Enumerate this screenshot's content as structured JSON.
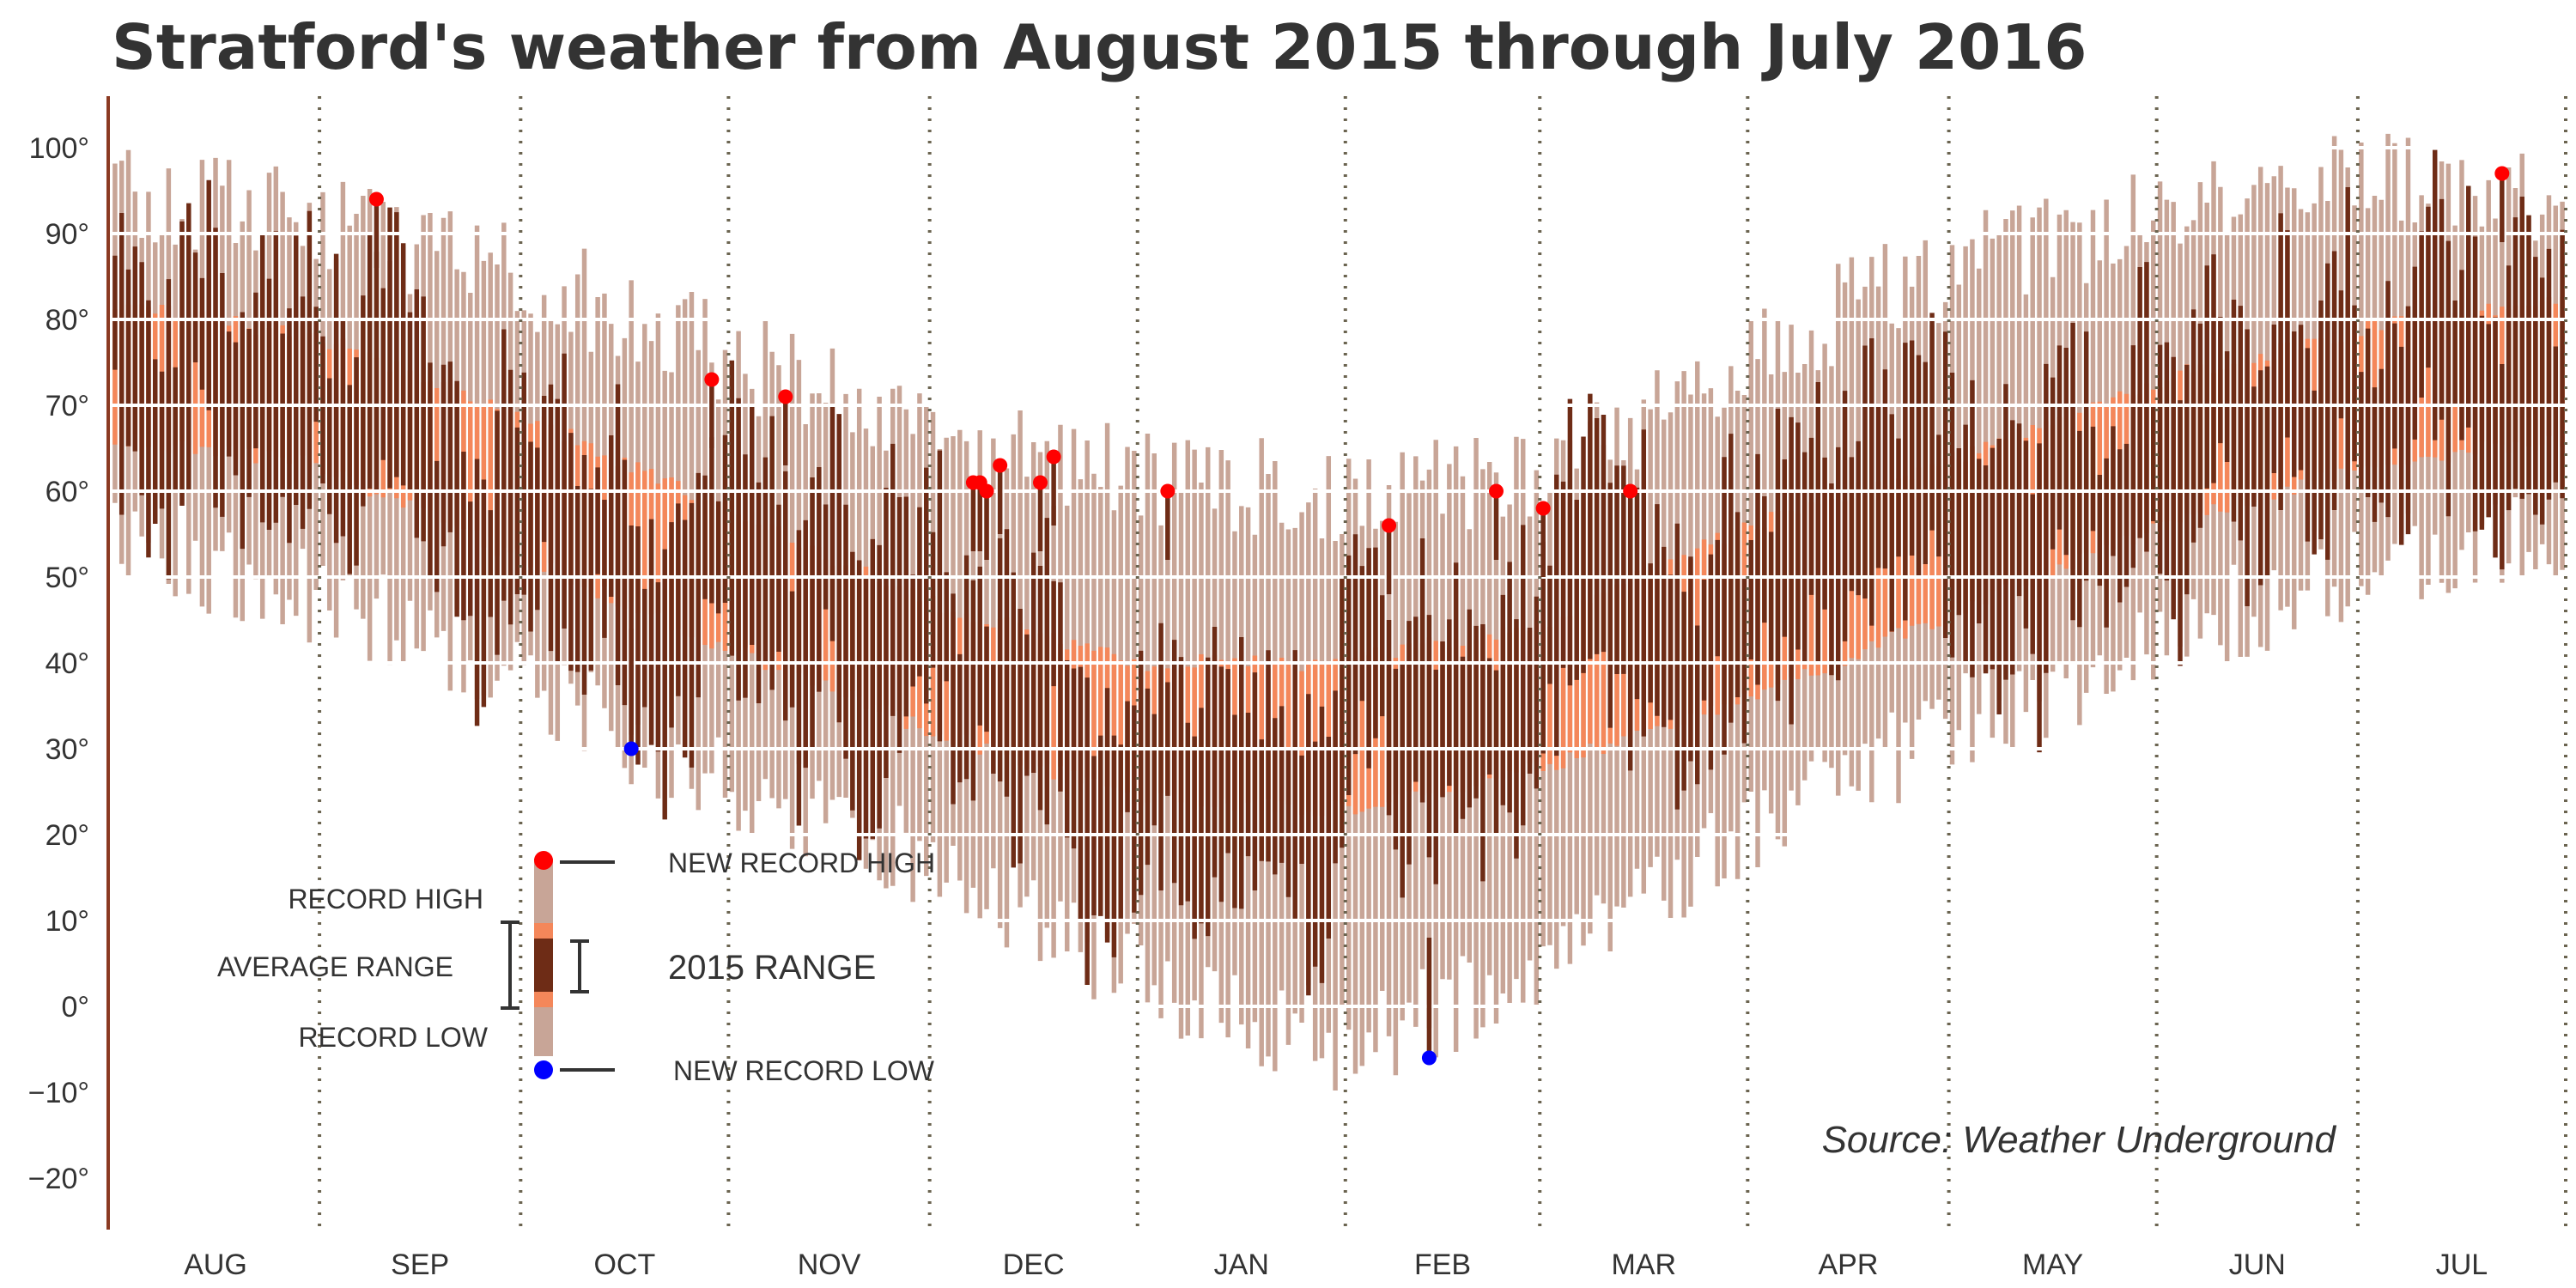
{
  "chart_data": {
    "type": "bar",
    "title": "Stratford's weather from August 2015 through July 2016",
    "source": "Source: Weather Underground",
    "ylim": [
      -26,
      106
    ],
    "yticks": [
      {
        "value": 100,
        "label": "100°"
      },
      {
        "value": 90,
        "label": "90°"
      },
      {
        "value": 80,
        "label": "80°"
      },
      {
        "value": 70,
        "label": "70°"
      },
      {
        "value": 60,
        "label": "60°"
      },
      {
        "value": 50,
        "label": "50°"
      },
      {
        "value": 40,
        "label": "40°"
      },
      {
        "value": 30,
        "label": "30°"
      },
      {
        "value": 20,
        "label": "20°"
      },
      {
        "value": 10,
        "label": "10°"
      },
      {
        "value": 0,
        "label": "0°"
      },
      {
        "value": -10,
        "label": "−10°"
      },
      {
        "value": -20,
        "label": "−20°"
      }
    ],
    "grid": true,
    "months": [
      "AUG",
      "SEP",
      "OCT",
      "NOV",
      "DEC",
      "JAN",
      "FEB",
      "MAR",
      "APR",
      "MAY",
      "JUN",
      "JUL"
    ],
    "month_lengths": [
      31,
      30,
      31,
      30,
      31,
      31,
      29,
      31,
      30,
      31,
      30,
      31
    ],
    "series": [
      {
        "name": "RECORD HIGH",
        "values_from_profile": true
      },
      {
        "name": "AVERAGE RANGE",
        "values_from_profile": true
      },
      {
        "name": "2015 RANGE",
        "values_from_profile": true
      }
    ],
    "seasonal_profile": {
      "record_high": {
        "day": [
          0,
          30,
          61,
          91,
          122,
          153,
          183,
          214,
          244,
          275,
          305,
          336,
          365
        ],
        "value": [
          94,
          92,
          85,
          76,
          67,
          61,
          60,
          62,
          77,
          86,
          92,
          96,
          94
        ]
      },
      "record_low": {
        "day": [
          0,
          30,
          61,
          91,
          122,
          153,
          183,
          214,
          244,
          275,
          305,
          336,
          365
        ],
        "value": [
          55,
          48,
          37,
          26,
          16,
          4,
          -5,
          5,
          20,
          33,
          42,
          52,
          55
        ]
      },
      "avg_high": {
        "day": [
          0,
          30,
          61,
          91,
          122,
          153,
          183,
          214,
          244,
          275,
          305,
          336,
          365
        ],
        "value": [
          82,
          78,
          69,
          58,
          47,
          40,
          40,
          45,
          56,
          64,
          73,
          79,
          82
        ]
      },
      "avg_low": {
        "day": [
          0,
          30,
          61,
          91,
          122,
          153,
          183,
          214,
          244,
          275,
          305,
          336,
          365
        ],
        "value": [
          66,
          63,
          52,
          42,
          32,
          24,
          23,
          28,
          36,
          46,
          56,
          63,
          66
        ]
      }
    },
    "new_record_highs": [
      {
        "day": 39,
        "value": 94
      },
      {
        "day": 89,
        "value": 73
      },
      {
        "day": 100,
        "value": 71
      },
      {
        "day": 128,
        "value": 61
      },
      {
        "day": 129,
        "value": 61
      },
      {
        "day": 130,
        "value": 60
      },
      {
        "day": 132,
        "value": 63
      },
      {
        "day": 138,
        "value": 61
      },
      {
        "day": 140,
        "value": 64
      },
      {
        "day": 157,
        "value": 60
      },
      {
        "day": 190,
        "value": 56
      },
      {
        "day": 206,
        "value": 60
      },
      {
        "day": 213,
        "value": 58
      },
      {
        "day": 226,
        "value": 60
      },
      {
        "day": 356,
        "value": 97
      }
    ],
    "new_record_lows": [
      {
        "day": 77,
        "value": 30
      },
      {
        "day": 196,
        "value": -6
      }
    ]
  },
  "legend": {
    "record_high": "RECORD HIGH",
    "average_range": "AVERAGE RANGE",
    "record_low": "RECORD LOW",
    "new_record_high": "NEW RECORD HIGH",
    "new_record_low": "NEW RECORD LOW",
    "range_2015": "2015 RANGE"
  },
  "colors": {
    "record_range": "#c8a597",
    "average_range": "#f4875a",
    "range_2015": "#6e2c16",
    "new_high": "#ff0000",
    "new_low": "#0000ff",
    "axis_spine": "#8b3a22",
    "month_divider": "#6b6450",
    "grid": "#ffffff",
    "text": "#333333"
  }
}
